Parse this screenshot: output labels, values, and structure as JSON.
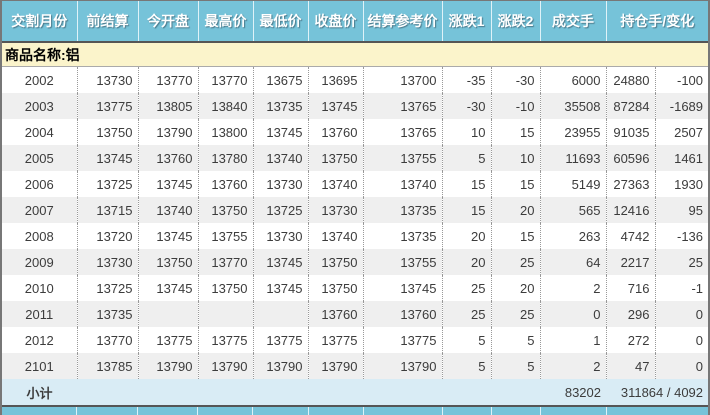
{
  "colors": {
    "header_bg": "#76C3D9",
    "header_text": "#FFFFFF",
    "product_row_bg": "#FBF4CB",
    "row_alt_bg": "#EFEFEF",
    "subtotal_bg": "#D9ECF5",
    "text": "#3C3C3C",
    "grid_dotted": "#999999",
    "outer_border": "#777777",
    "dark_rule": "#555555",
    "header_separator": "#DFF2F8"
  },
  "table": {
    "product_label": "商品名称:铝",
    "headers": [
      "交割月份",
      "前结算",
      "今开盘",
      "最高价",
      "最低价",
      "收盘价",
      "结算参考价",
      "涨跌1",
      "涨跌2",
      "成交手",
      "持仓手/变化"
    ],
    "rows": [
      {
        "month": "2002",
        "prev_settle": "13730",
        "open": "13770",
        "high": "13770",
        "low": "13675",
        "close": "13695",
        "settle_ref": "13700",
        "chg1": "-35",
        "chg2": "-30",
        "volume": "6000",
        "oi": "24880",
        "oi_chg": "-100"
      },
      {
        "month": "2003",
        "prev_settle": "13775",
        "open": "13805",
        "high": "13840",
        "low": "13735",
        "close": "13745",
        "settle_ref": "13765",
        "chg1": "-30",
        "chg2": "-10",
        "volume": "35508",
        "oi": "87284",
        "oi_chg": "-1689"
      },
      {
        "month": "2004",
        "prev_settle": "13750",
        "open": "13790",
        "high": "13800",
        "low": "13745",
        "close": "13760",
        "settle_ref": "13765",
        "chg1": "10",
        "chg2": "15",
        "volume": "23955",
        "oi": "91035",
        "oi_chg": "2507"
      },
      {
        "month": "2005",
        "prev_settle": "13745",
        "open": "13760",
        "high": "13780",
        "low": "13740",
        "close": "13750",
        "settle_ref": "13755",
        "chg1": "5",
        "chg2": "10",
        "volume": "11693",
        "oi": "60596",
        "oi_chg": "1461"
      },
      {
        "month": "2006",
        "prev_settle": "13725",
        "open": "13745",
        "high": "13760",
        "low": "13730",
        "close": "13740",
        "settle_ref": "13740",
        "chg1": "15",
        "chg2": "15",
        "volume": "5149",
        "oi": "27363",
        "oi_chg": "1930"
      },
      {
        "month": "2007",
        "prev_settle": "13715",
        "open": "13740",
        "high": "13750",
        "low": "13725",
        "close": "13730",
        "settle_ref": "13735",
        "chg1": "15",
        "chg2": "20",
        "volume": "565",
        "oi": "12416",
        "oi_chg": "95"
      },
      {
        "month": "2008",
        "prev_settle": "13720",
        "open": "13745",
        "high": "13755",
        "low": "13730",
        "close": "13740",
        "settle_ref": "13735",
        "chg1": "20",
        "chg2": "15",
        "volume": "263",
        "oi": "4742",
        "oi_chg": "-136"
      },
      {
        "month": "2009",
        "prev_settle": "13730",
        "open": "13750",
        "high": "13770",
        "low": "13745",
        "close": "13750",
        "settle_ref": "13755",
        "chg1": "20",
        "chg2": "25",
        "volume": "64",
        "oi": "2217",
        "oi_chg": "25"
      },
      {
        "month": "2010",
        "prev_settle": "13725",
        "open": "13745",
        "high": "13750",
        "low": "13745",
        "close": "13750",
        "settle_ref": "13745",
        "chg1": "25",
        "chg2": "20",
        "volume": "2",
        "oi": "716",
        "oi_chg": "-1"
      },
      {
        "month": "2011",
        "prev_settle": "13735",
        "open": "",
        "high": "",
        "low": "",
        "close": "13760",
        "settle_ref": "13760",
        "chg1": "25",
        "chg2": "25",
        "volume": "0",
        "oi": "296",
        "oi_chg": "0"
      },
      {
        "month": "2012",
        "prev_settle": "13770",
        "open": "13775",
        "high": "13775",
        "low": "13775",
        "close": "13775",
        "settle_ref": "13775",
        "chg1": "5",
        "chg2": "5",
        "volume": "1",
        "oi": "272",
        "oi_chg": "0"
      },
      {
        "month": "2101",
        "prev_settle": "13785",
        "open": "13790",
        "high": "13790",
        "low": "13790",
        "close": "13790",
        "settle_ref": "13790",
        "chg1": "5",
        "chg2": "5",
        "volume": "2",
        "oi": "47",
        "oi_chg": "0"
      }
    ],
    "subtotal": {
      "label": "小计",
      "volume": "83202",
      "oi_total": "311864 / 4092"
    }
  }
}
